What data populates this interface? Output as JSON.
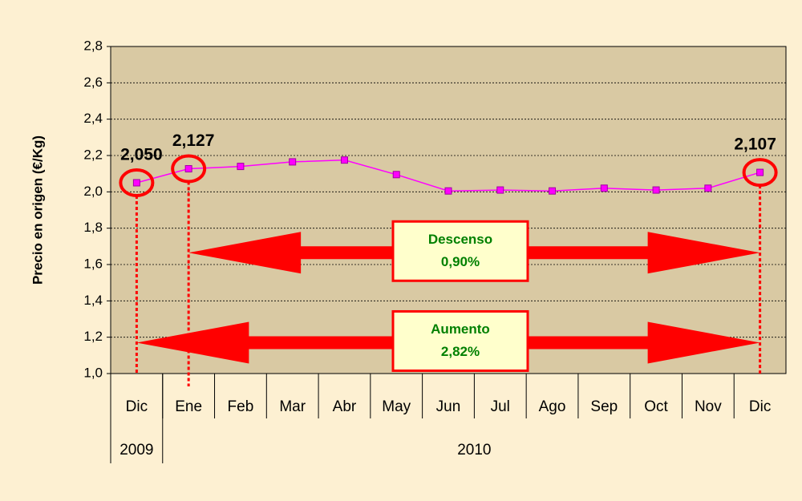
{
  "chart_data": {
    "type": "line",
    "y_label": "Precio en origen (€/Kg)",
    "categories": [
      "Dic",
      "Ene",
      "Feb",
      "Mar",
      "Abr",
      "May",
      "Jun",
      "Jul",
      "Ago",
      "Sep",
      "Oct",
      "Nov",
      "Dic"
    ],
    "x_groups": [
      {
        "label": "2009",
        "count": 1
      },
      {
        "label": "2010",
        "count": 12
      }
    ],
    "series": [
      {
        "name": "Precio",
        "color": "#ff00ff",
        "values": [
          2.05,
          2.127,
          2.14,
          2.165,
          2.175,
          2.095,
          2.005,
          2.01,
          2.005,
          2.02,
          2.01,
          2.02,
          2.107
        ],
        "value_labels": [
          "2,050",
          "2,127",
          null,
          null,
          null,
          null,
          null,
          null,
          null,
          null,
          null,
          null,
          "2,107"
        ]
      }
    ],
    "ylim": [
      1.0,
      2.8
    ],
    "yticks": [
      {
        "value": 1.0,
        "label": "1,0"
      },
      {
        "value": 1.2,
        "label": "1,2"
      },
      {
        "value": 1.4,
        "label": "1,4"
      },
      {
        "value": 1.6,
        "label": "1,6"
      },
      {
        "value": 1.8,
        "label": "1,8"
      },
      {
        "value": 2.0,
        "label": "2,0"
      },
      {
        "value": 2.2,
        "label": "2,2"
      },
      {
        "value": 2.4,
        "label": "2,4"
      },
      {
        "value": 2.6,
        "label": "2,6"
      },
      {
        "value": 2.8,
        "label": "2,8"
      }
    ],
    "grid": true,
    "annotations": [
      {
        "title": "Descenso",
        "text": "0,90%"
      },
      {
        "title": "Aumento",
        "text": "2,82%"
      }
    ]
  }
}
